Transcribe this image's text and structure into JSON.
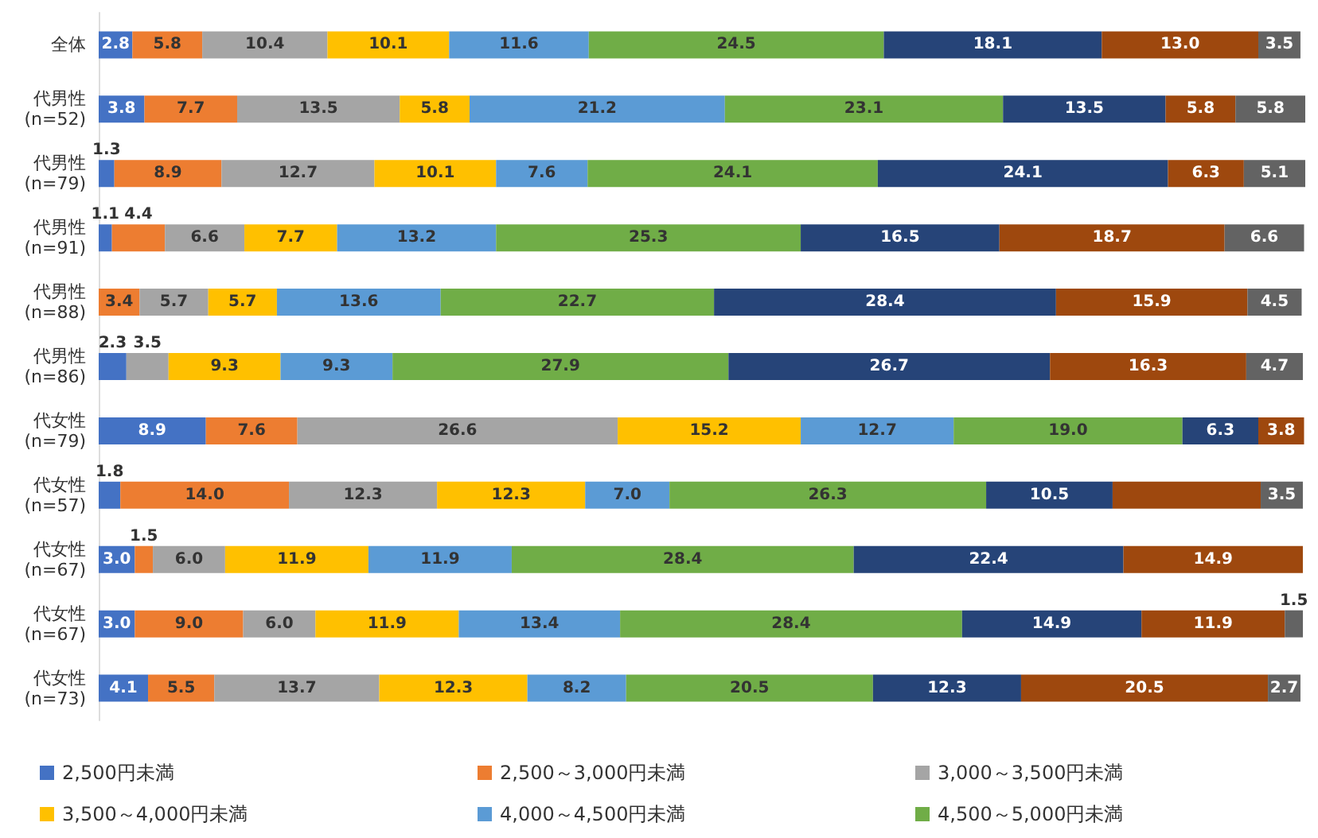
{
  "chart_data": {
    "type": "bar",
    "orientation": "horizontal",
    "stacked": true,
    "legend": "bottom",
    "categories": [
      "全体",
      "代男性\n(n=52)",
      "代男性\n(n=79)",
      "代男性\n(n=91)",
      "代男性\n(n=88)",
      "代男性\n(n=86)",
      "代女性\n(n=79)",
      "代女性\n(n=57)",
      "代女性\n(n=67)",
      "代女性\n(n=67)",
      "代女性\n(n=73)"
    ],
    "series": [
      {
        "name": "2,500円未満",
        "color": "#4472c4",
        "values": [
          2.8,
          3.8,
          1.3,
          1.1,
          null,
          2.3,
          8.9,
          1.8,
          3.0,
          3.0,
          4.1
        ],
        "value_labels": [
          "2.8",
          "3.8",
          "1.3",
          "1.1",
          null,
          "2.3",
          "8.9",
          "1.8",
          "3.0",
          "3.0",
          "4.1"
        ]
      },
      {
        "name": "2,500～3,000円未満",
        "color": "#ed7d31",
        "values": [
          5.8,
          7.7,
          8.9,
          4.4,
          3.4,
          null,
          7.6,
          14.0,
          1.5,
          9.0,
          5.5
        ],
        "value_labels": [
          "5.8",
          "7.7",
          "8.9",
          "4.4",
          "3.4",
          null,
          "7.6",
          "14.0",
          "1.5",
          "9.0",
          "5.5"
        ]
      },
      {
        "name": "3,000～3,500円未満",
        "color": "#a5a5a5",
        "values": [
          10.4,
          13.5,
          12.7,
          6.6,
          5.7,
          3.5,
          26.6,
          12.3,
          6.0,
          6.0,
          13.7
        ],
        "value_labels": [
          "10.4",
          "13.5",
          "12.7",
          "6.6",
          "5.7",
          "3.5",
          "26.6",
          "12.3",
          "6.0",
          "6.0",
          "13.7"
        ]
      },
      {
        "name": "3,500～4,000円未満",
        "color": "#ffc000",
        "values": [
          10.1,
          5.8,
          10.1,
          7.7,
          5.7,
          9.3,
          15.2,
          12.3,
          11.9,
          11.9,
          12.3
        ],
        "value_labels": [
          "10.1",
          "5.8",
          "10.1",
          "7.7",
          "5.7",
          "9.3",
          "15.2",
          "12.3",
          "11.9",
          "11.9",
          "12.3"
        ]
      },
      {
        "name": "4,000～4,500円未満",
        "color": "#5b9bd5",
        "values": [
          11.6,
          21.2,
          7.6,
          13.2,
          13.6,
          9.3,
          12.7,
          7.0,
          11.9,
          13.4,
          8.2
        ],
        "value_labels": [
          "11.6",
          "21.2",
          "7.6",
          "13.2",
          "13.6",
          "9.3",
          "12.7",
          "7.0",
          "11.9",
          "13.4",
          "8.2"
        ]
      },
      {
        "name": "4,500～5,000円未満",
        "color": "#70ad47",
        "values": [
          24.5,
          23.1,
          24.1,
          25.3,
          22.7,
          27.9,
          19.0,
          26.3,
          28.4,
          28.4,
          20.5
        ],
        "value_labels": [
          "24.5",
          "23.1",
          "24.1",
          "25.3",
          "22.7",
          "27.9",
          "19.0",
          "26.3",
          "28.4",
          "28.4",
          "20.5"
        ]
      },
      {
        "color": "#264478",
        "values": [
          18.1,
          13.5,
          24.1,
          16.5,
          28.4,
          26.7,
          6.3,
          10.5,
          22.4,
          14.9,
          12.3
        ],
        "value_labels": [
          "18.1",
          "13.5",
          "24.1",
          "16.5",
          "28.4",
          "26.7",
          "6.3",
          "10.5",
          "22.4",
          "14.9",
          "12.3"
        ]
      },
      {
        "color": "#9e480e",
        "values": [
          13.0,
          5.8,
          6.3,
          18.7,
          15.9,
          16.3,
          3.8,
          12.3,
          14.9,
          11.9,
          20.5
        ],
        "value_labels": [
          "13.0",
          "5.8",
          "6.3",
          "18.7",
          "15.9",
          "16.3",
          "3.8",
          null,
          "14.9",
          "11.9",
          "20.5"
        ]
      },
      {
        "color": "#636363",
        "values": [
          3.5,
          5.8,
          5.1,
          6.6,
          4.5,
          4.7,
          null,
          3.5,
          null,
          1.5,
          2.7
        ],
        "value_labels": [
          "3.5",
          "5.8",
          "5.1",
          "6.6",
          "4.5",
          "4.7",
          null,
          "3.5",
          null,
          "1.5",
          "2.7"
        ]
      }
    ]
  }
}
